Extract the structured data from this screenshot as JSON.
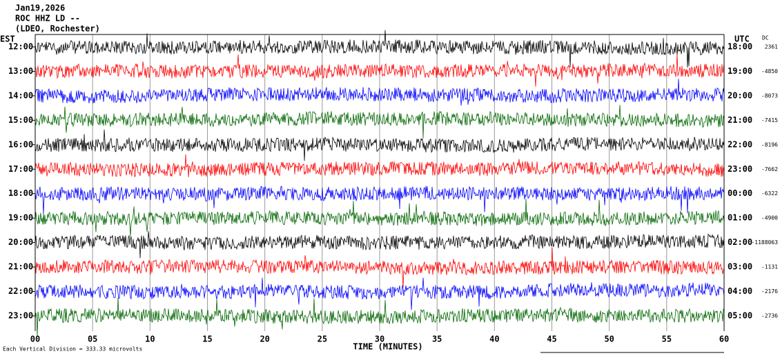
{
  "header": {
    "lines": [
      "Jan19,2026",
      "ROC HHZ LD --",
      "(LDEO, Rochester)"
    ]
  },
  "left_axis": {
    "title": "EST",
    "labels": [
      "12:00",
      "13:00",
      "14:00",
      "15:00",
      "16:00",
      "17:00",
      "18:00",
      "19:00",
      "20:00",
      "21:00",
      "22:00",
      "23:00"
    ]
  },
  "right_axis": {
    "title": "UTC",
    "labels": [
      "18:00",
      "19:00",
      "20:00",
      "21:00",
      "22:00",
      "23:00",
      "00:00",
      "01:00",
      "02:00",
      "03:00",
      "04:00",
      "05:00"
    ]
  },
  "dc": {
    "title": "DC",
    "values": [
      "2361",
      "-4850",
      "-8073",
      "-7415",
      "-8196",
      "-7662",
      "-6322",
      "-4900",
      "-1188063",
      "-1131",
      "-2176",
      "-2736"
    ]
  },
  "x_axis": {
    "ticks": [
      "00",
      "05",
      "10",
      "15",
      "20",
      "25",
      "30",
      "35",
      "40",
      "45",
      "50",
      "55",
      "60"
    ],
    "title": "TIME (MINUTES)"
  },
  "footer": "Each Vertical Division =  333.33 microvolts"
}
